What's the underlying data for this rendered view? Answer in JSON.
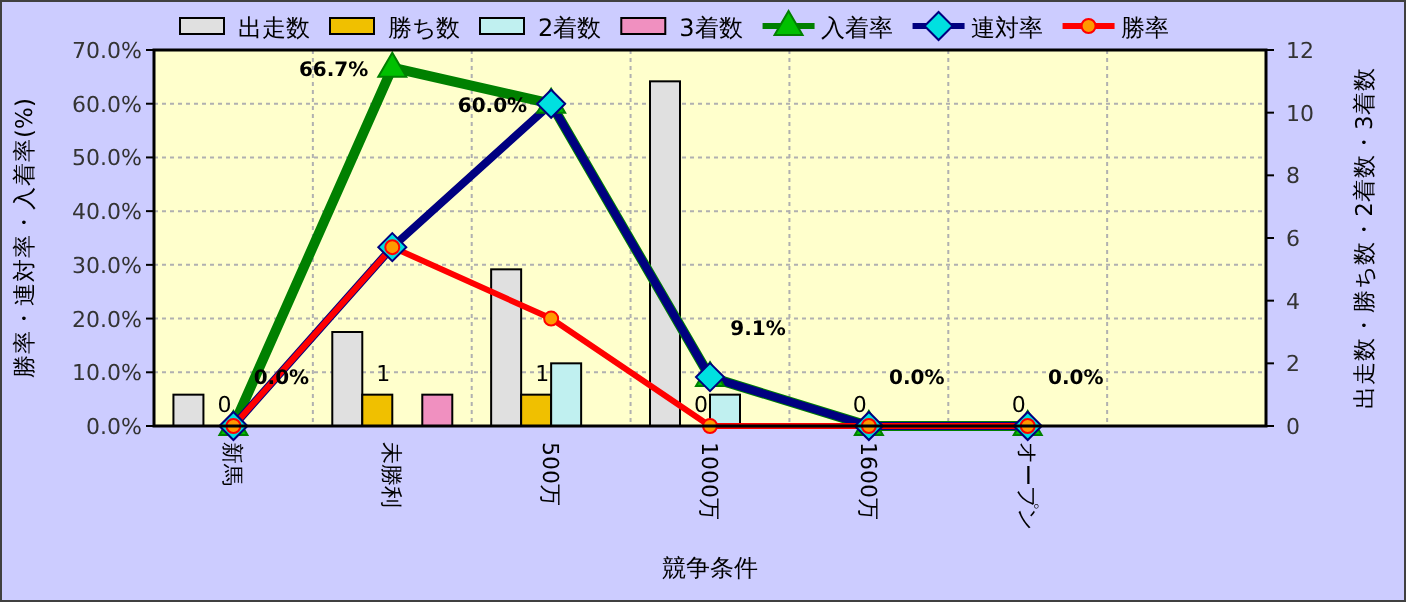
{
  "chart_data": {
    "type": "bar",
    "xlabel": "競争条件",
    "ylabel": "勝率・連対率・入着率(%)",
    "y2label": "出走数・勝ち数・2着数・3着数",
    "categories": [
      "新馬",
      "未勝利",
      "500万",
      "1000万",
      "1600万",
      "オープン",
      null
    ],
    "series": [
      {
        "name": "出走数",
        "color": "#e0e0e0",
        "axis": "y2",
        "values": [
          1,
          3,
          5,
          11,
          0,
          0,
          null
        ]
      },
      {
        "name": "勝ち数",
        "color": "#f0c000",
        "axis": "y2",
        "values": [
          0,
          1,
          1,
          0,
          0,
          0,
          null
        ],
        "value_labels": [
          "0",
          "1",
          "1",
          "0",
          "0",
          "0",
          null
        ]
      },
      {
        "name": "2着数",
        "color": "#c0f0f0",
        "axis": "y2",
        "values": [
          0,
          0,
          2,
          1,
          0,
          0,
          null
        ]
      },
      {
        "name": "3着数",
        "color": "#f090c0",
        "axis": "y2",
        "values": [
          0,
          1,
          0,
          0,
          0,
          0,
          null
        ]
      },
      {
        "name": "入着率",
        "type": "line",
        "color": "#008000",
        "marker": "triangle",
        "values": [
          0,
          66.7,
          60,
          9.1,
          0,
          0,
          null
        ],
        "value_labels": [
          "0.0%",
          "66.7%",
          "60.0%",
          "9.1%",
          "0.0%",
          "0.0%",
          null
        ]
      },
      {
        "name": "連対率",
        "type": "line",
        "color": "#000080",
        "marker": "diamond",
        "values": [
          0,
          33.3,
          60,
          9.1,
          0,
          0,
          null
        ]
      },
      {
        "name": "勝率",
        "type": "line",
        "color": "#ff0000",
        "marker": "circle",
        "values": [
          0,
          33.3,
          20,
          0,
          0,
          0,
          null
        ]
      }
    ],
    "ylim": [
      0,
      70
    ],
    "yticks": [
      {
        "value": 0,
        "label": "0.0%"
      },
      {
        "value": 10,
        "label": "10.0%"
      },
      {
        "value": 20,
        "label": "20.0%"
      },
      {
        "value": 30,
        "label": "30.0%"
      },
      {
        "value": 40,
        "label": "40.0%"
      },
      {
        "value": 50,
        "label": "50.0%"
      },
      {
        "value": 60,
        "label": "60.0%"
      },
      {
        "value": 70,
        "label": "70.0%"
      }
    ],
    "y2lim": [
      0,
      12
    ],
    "y2ticks": [
      0,
      2,
      4,
      6,
      8,
      10,
      12
    ],
    "grid": true,
    "legend": "top"
  }
}
